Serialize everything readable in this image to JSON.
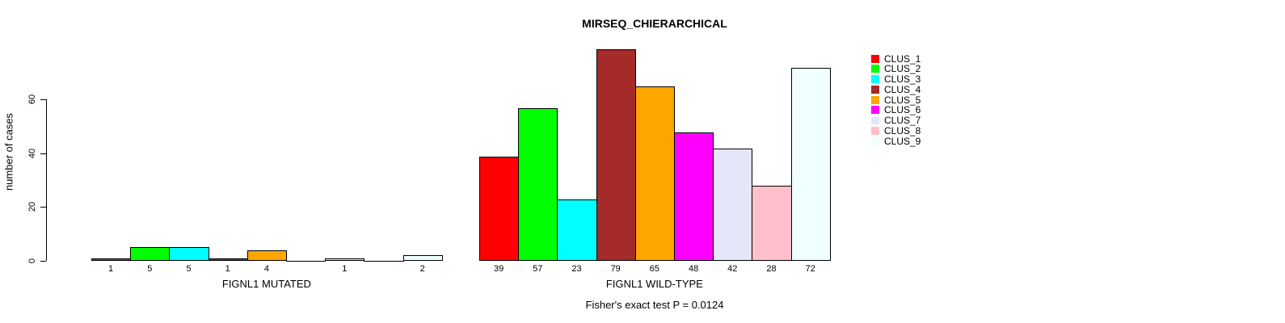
{
  "title": "MIRSEQ_CHIERARCHICAL",
  "ylabel": "number of cases",
  "footnote": "Fisher's exact test P = 0.0124",
  "chart_data": {
    "type": "bar",
    "title": "MIRSEQ_CHIERARCHICAL",
    "ylabel": "number of cases",
    "xlabel": "",
    "ylim": [
      0,
      79
    ],
    "yticks": [
      0,
      20,
      40,
      60
    ],
    "grid": false,
    "legend_position": "right",
    "bar_border_color": "#000000",
    "clusters": [
      {
        "name": "CLUS_1",
        "color": "#FF0000"
      },
      {
        "name": "CLUS_2",
        "color": "#00FF00"
      },
      {
        "name": "CLUS_3",
        "color": "#00FFFF"
      },
      {
        "name": "CLUS_4",
        "color": "#A52A2A"
      },
      {
        "name": "CLUS_5",
        "color": "#FFA500"
      },
      {
        "name": "CLUS_6",
        "color": "#FF00FF"
      },
      {
        "name": "CLUS_7",
        "color": "#E6E6FA"
      },
      {
        "name": "CLUS_8",
        "color": "#FFC0CB"
      },
      {
        "name": "CLUS_9",
        "color": "#F0FFFF"
      }
    ],
    "groups": [
      {
        "label": "FIGNL1 MUTATED",
        "values": [
          1,
          5,
          5,
          1,
          4,
          0,
          1,
          0,
          2
        ]
      },
      {
        "label": "FIGNL1 WILD-TYPE",
        "values": [
          39,
          57,
          23,
          79,
          65,
          48,
          42,
          28,
          72
        ]
      }
    ],
    "zero_value_labels_hidden": true,
    "annotation": "Fisher's exact test P = 0.0124"
  }
}
